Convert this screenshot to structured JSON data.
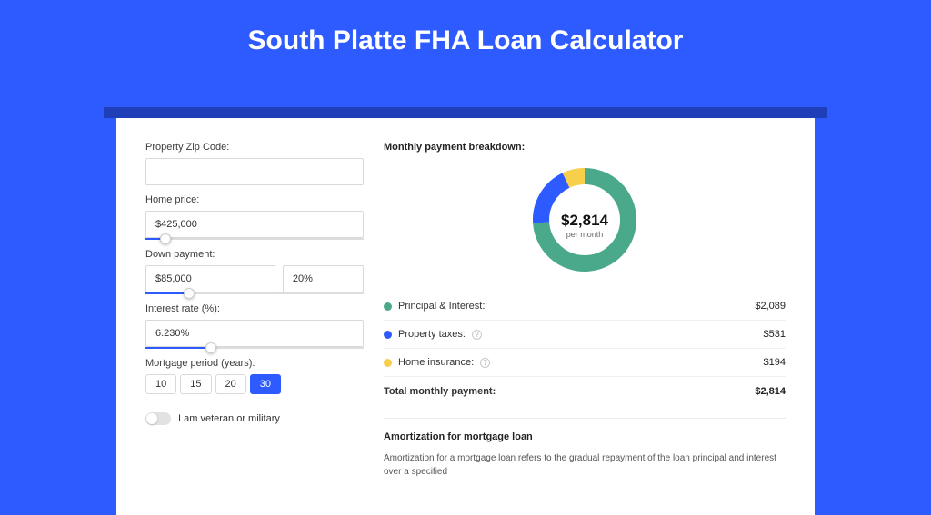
{
  "page": {
    "title": "South Platte FHA Loan Calculator",
    "background_color": "#2e5bff",
    "card_background": "#ffffff"
  },
  "form": {
    "zip": {
      "label": "Property Zip Code:",
      "value": ""
    },
    "home_price": {
      "label": "Home price:",
      "value": "$425,000",
      "slider_pct": 9
    },
    "down_payment": {
      "label": "Down payment:",
      "amount": "$85,000",
      "percent": "20%",
      "slider_pct": 20
    },
    "interest_rate": {
      "label": "Interest rate (%):",
      "value": "6.230%",
      "slider_pct": 30
    },
    "period": {
      "label": "Mortgage period (years):",
      "options": [
        "10",
        "15",
        "20",
        "30"
      ],
      "active_index": 3
    },
    "veteran": {
      "label": "I am veteran or military",
      "enabled": false
    }
  },
  "breakdown": {
    "title": "Monthly payment breakdown:",
    "center_amount": "$2,814",
    "center_sub": "per month",
    "items": [
      {
        "label": "Principal & Interest:",
        "value": "$2,089",
        "color": "#4aa98b",
        "pct": 74,
        "info": false
      },
      {
        "label": "Property taxes:",
        "value": "$531",
        "color": "#2e5bff",
        "pct": 19,
        "info": true
      },
      {
        "label": "Home insurance:",
        "value": "$194",
        "color": "#f7cf4a",
        "pct": 7,
        "info": true
      }
    ],
    "total": {
      "label": "Total monthly payment:",
      "value": "$2,814"
    }
  },
  "amortization": {
    "title": "Amortization for mortgage loan",
    "text": "Amortization for a mortgage loan refers to the gradual repayment of the loan principal and interest over a specified"
  }
}
